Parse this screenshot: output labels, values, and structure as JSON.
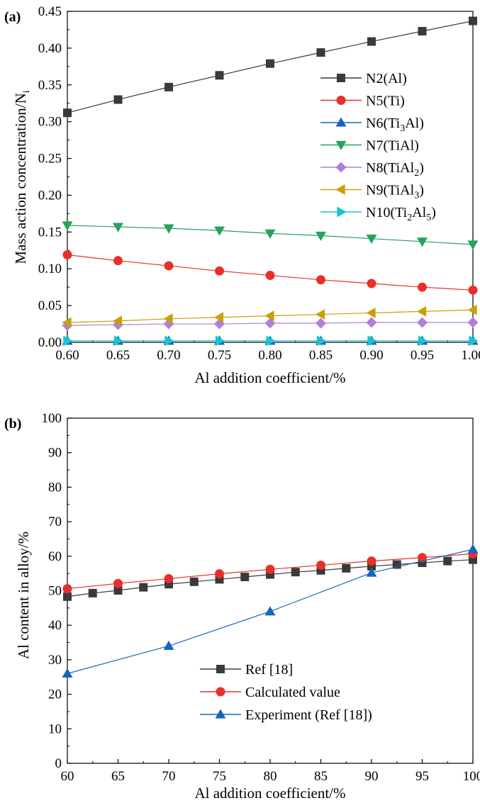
{
  "chart_data": [
    {
      "type": "line",
      "panel_label": "(a)",
      "xlabel": "Al addition coefficient/%",
      "ylabel": "Mass action concentration/N",
      "ylabel_subscript": "i",
      "xlim": [
        0.6,
        1.0
      ],
      "ylim": [
        0.0,
        0.45
      ],
      "xticks": [
        "0.60",
        "0.65",
        "0.70",
        "0.75",
        "0.80",
        "0.85",
        "0.90",
        "0.95",
        "1.00"
      ],
      "yticks": [
        "0.00",
        "0.05",
        "0.10",
        "0.15",
        "0.20",
        "0.25",
        "0.30",
        "0.35",
        "0.40",
        "0.45"
      ],
      "x": [
        0.6,
        0.65,
        0.7,
        0.75,
        0.8,
        0.85,
        0.9,
        0.95,
        1.0
      ],
      "legend_position": "center-right",
      "series": [
        {
          "name": "N2(Al)",
          "label_parts": [
            [
              "N2(Al)",
              ""
            ]
          ],
          "color": "#3a3a3a",
          "marker": "square",
          "values": [
            0.312,
            0.33,
            0.347,
            0.363,
            0.379,
            0.394,
            0.409,
            0.423,
            0.437
          ]
        },
        {
          "name": "N5(Ti)",
          "label_parts": [
            [
              "N5(Ti)",
              ""
            ]
          ],
          "color": "#e8302a",
          "marker": "circle",
          "values": [
            0.119,
            0.111,
            0.104,
            0.097,
            0.091,
            0.085,
            0.08,
            0.075,
            0.071
          ]
        },
        {
          "name": "N6(Ti3Al)",
          "label_parts": [
            [
              "N6(Ti",
              ""
            ],
            [
              "3",
              "sub"
            ],
            [
              "Al)",
              ""
            ]
          ],
          "color": "#1565c0",
          "marker": "triangle-up",
          "values": [
            0.002,
            0.002,
            0.002,
            0.002,
            0.002,
            0.002,
            0.002,
            0.002,
            0.002
          ]
        },
        {
          "name": "N7(TiAl)",
          "label_parts": [
            [
              "N7(TiAl)",
              ""
            ]
          ],
          "color": "#27a35a",
          "marker": "triangle-down",
          "values": [
            0.159,
            0.157,
            0.155,
            0.152,
            0.148,
            0.145,
            0.141,
            0.137,
            0.133
          ]
        },
        {
          "name": "N8(TiAl2)",
          "label_parts": [
            [
              "N8(TiAl",
              ""
            ],
            [
              "2",
              "sub"
            ],
            [
              ")",
              ""
            ]
          ],
          "color": "#b07fd8",
          "marker": "diamond",
          "values": [
            0.023,
            0.024,
            0.025,
            0.025,
            0.026,
            0.026,
            0.027,
            0.027,
            0.027
          ]
        },
        {
          "name": "N9(TiAl3)",
          "label_parts": [
            [
              "N9(TiAl",
              ""
            ],
            [
              "3",
              "sub"
            ],
            [
              ")",
              ""
            ]
          ],
          "color": "#c9a100",
          "marker": "triangle-left",
          "values": [
            0.027,
            0.029,
            0.032,
            0.034,
            0.036,
            0.038,
            0.04,
            0.042,
            0.044
          ]
        },
        {
          "name": "N10(Ti2Al5)",
          "label_parts": [
            [
              "N10(Ti",
              ""
            ],
            [
              "2",
              "sub"
            ],
            [
              "Al",
              ""
            ],
            [
              "5",
              "sub"
            ],
            [
              ")",
              ""
            ]
          ],
          "color": "#19c4d0",
          "marker": "triangle-right",
          "values": [
            0.002,
            0.002,
            0.002,
            0.002,
            0.002,
            0.002,
            0.002,
            0.002,
            0.002
          ]
        }
      ]
    },
    {
      "type": "line",
      "panel_label": "(b)",
      "xlabel": "Al addition coefficient/%",
      "ylabel": "Al content in alloy/%",
      "xlim": [
        60,
        100
      ],
      "ylim": [
        0,
        100
      ],
      "xticks": [
        "60",
        "65",
        "70",
        "75",
        "80",
        "85",
        "90",
        "95",
        "100"
      ],
      "yticks": [
        "0",
        "10",
        "20",
        "30",
        "40",
        "50",
        "60",
        "70",
        "80",
        "90",
        "100"
      ],
      "legend_position": "bottom-center",
      "series": [
        {
          "name": "Ref [18]",
          "label_parts": [
            [
              "Ref [18]",
              ""
            ]
          ],
          "color": "#3a3a3a",
          "marker": "square",
          "x": [
            60,
            62.5,
            65,
            67.5,
            70,
            72.5,
            75,
            77.5,
            80,
            82.5,
            85,
            87.5,
            90,
            92.5,
            95,
            97.5,
            100
          ],
          "values": [
            48.3,
            49.3,
            50.1,
            51.0,
            51.9,
            52.6,
            53.3,
            54.0,
            54.7,
            55.4,
            55.9,
            56.5,
            57.1,
            57.6,
            58.1,
            58.6,
            59.0
          ]
        },
        {
          "name": "Calculated value",
          "label_parts": [
            [
              "Calculated value",
              ""
            ]
          ],
          "color": "#e8302a",
          "marker": "circle",
          "x": [
            60,
            65,
            70,
            75,
            80,
            85,
            90,
            95,
            100
          ],
          "values": [
            50.6,
            52.1,
            53.5,
            54.9,
            56.2,
            57.4,
            58.6,
            59.6,
            60.7
          ]
        },
        {
          "name": "Experiment (Ref [18])",
          "label_parts": [
            [
              "Experiment (Ref [18])",
              ""
            ]
          ],
          "color": "#1565c0",
          "marker": "triangle-up",
          "x": [
            60,
            70,
            80,
            90,
            100
          ],
          "values": [
            26,
            34,
            44,
            55.2,
            62
          ]
        }
      ]
    }
  ]
}
